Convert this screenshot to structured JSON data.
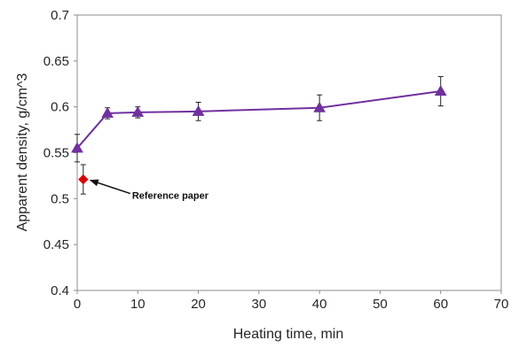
{
  "chart_data": {
    "type": "scatter",
    "title": "",
    "xlabel": "Heating time, min",
    "ylabel": "Apparent density, g/cm^3",
    "xlim": [
      0,
      70
    ],
    "ylim": [
      0.4,
      0.7
    ],
    "x_ticks": [
      "0",
      "10",
      "20",
      "30",
      "40",
      "50",
      "60",
      "70"
    ],
    "y_ticks": [
      "0.4",
      "0.45",
      "0.5",
      "0.55",
      "0.6",
      "0.65",
      "0.7"
    ],
    "grid": false,
    "legend": "none",
    "series": [
      {
        "marker": "triangle",
        "color": "#7030A0",
        "line": true,
        "x": [
          0,
          5,
          10,
          20,
          40,
          60
        ],
        "y": [
          0.555,
          0.593,
          0.594,
          0.595,
          0.599,
          0.617
        ],
        "error": [
          0.015,
          0.006,
          0.006,
          0.01,
          0.014,
          0.016
        ]
      },
      {
        "marker": "diamond",
        "color": "#E00000",
        "line": false,
        "x": [
          1
        ],
        "y": [
          0.521
        ],
        "error": [
          0.016
        ]
      }
    ],
    "annotations": [
      {
        "text": "Reference paper",
        "points_to": {
          "x": 1,
          "y": 0.521
        }
      }
    ]
  }
}
